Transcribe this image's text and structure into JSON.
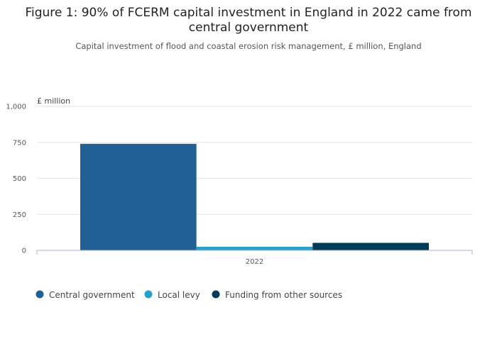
{
  "title": "Figure 1: 90% of FCERM capital investment in England in 2022 came from central government",
  "subtitle": "Capital investment of flood and coastal erosion risk management, £ million, England",
  "chart_data": {
    "type": "bar",
    "unit_label": "£ million",
    "categories": [
      "2022"
    ],
    "series": [
      {
        "name": "Central government",
        "values": [
          740
        ],
        "color": "#206095"
      },
      {
        "name": "Local levy",
        "values": [
          25
        ],
        "color": "#27a0cc"
      },
      {
        "name": "Funding from other sources",
        "values": [
          52
        ],
        "color": "#003c57"
      }
    ],
    "ylim": [
      0,
      1000
    ],
    "yticks": [
      0,
      250,
      500,
      750,
      1000
    ],
    "ytick_labels": [
      "0",
      "250",
      "500",
      "750",
      "1,000"
    ],
    "grid": true,
    "legend_position": "bottom-left"
  }
}
